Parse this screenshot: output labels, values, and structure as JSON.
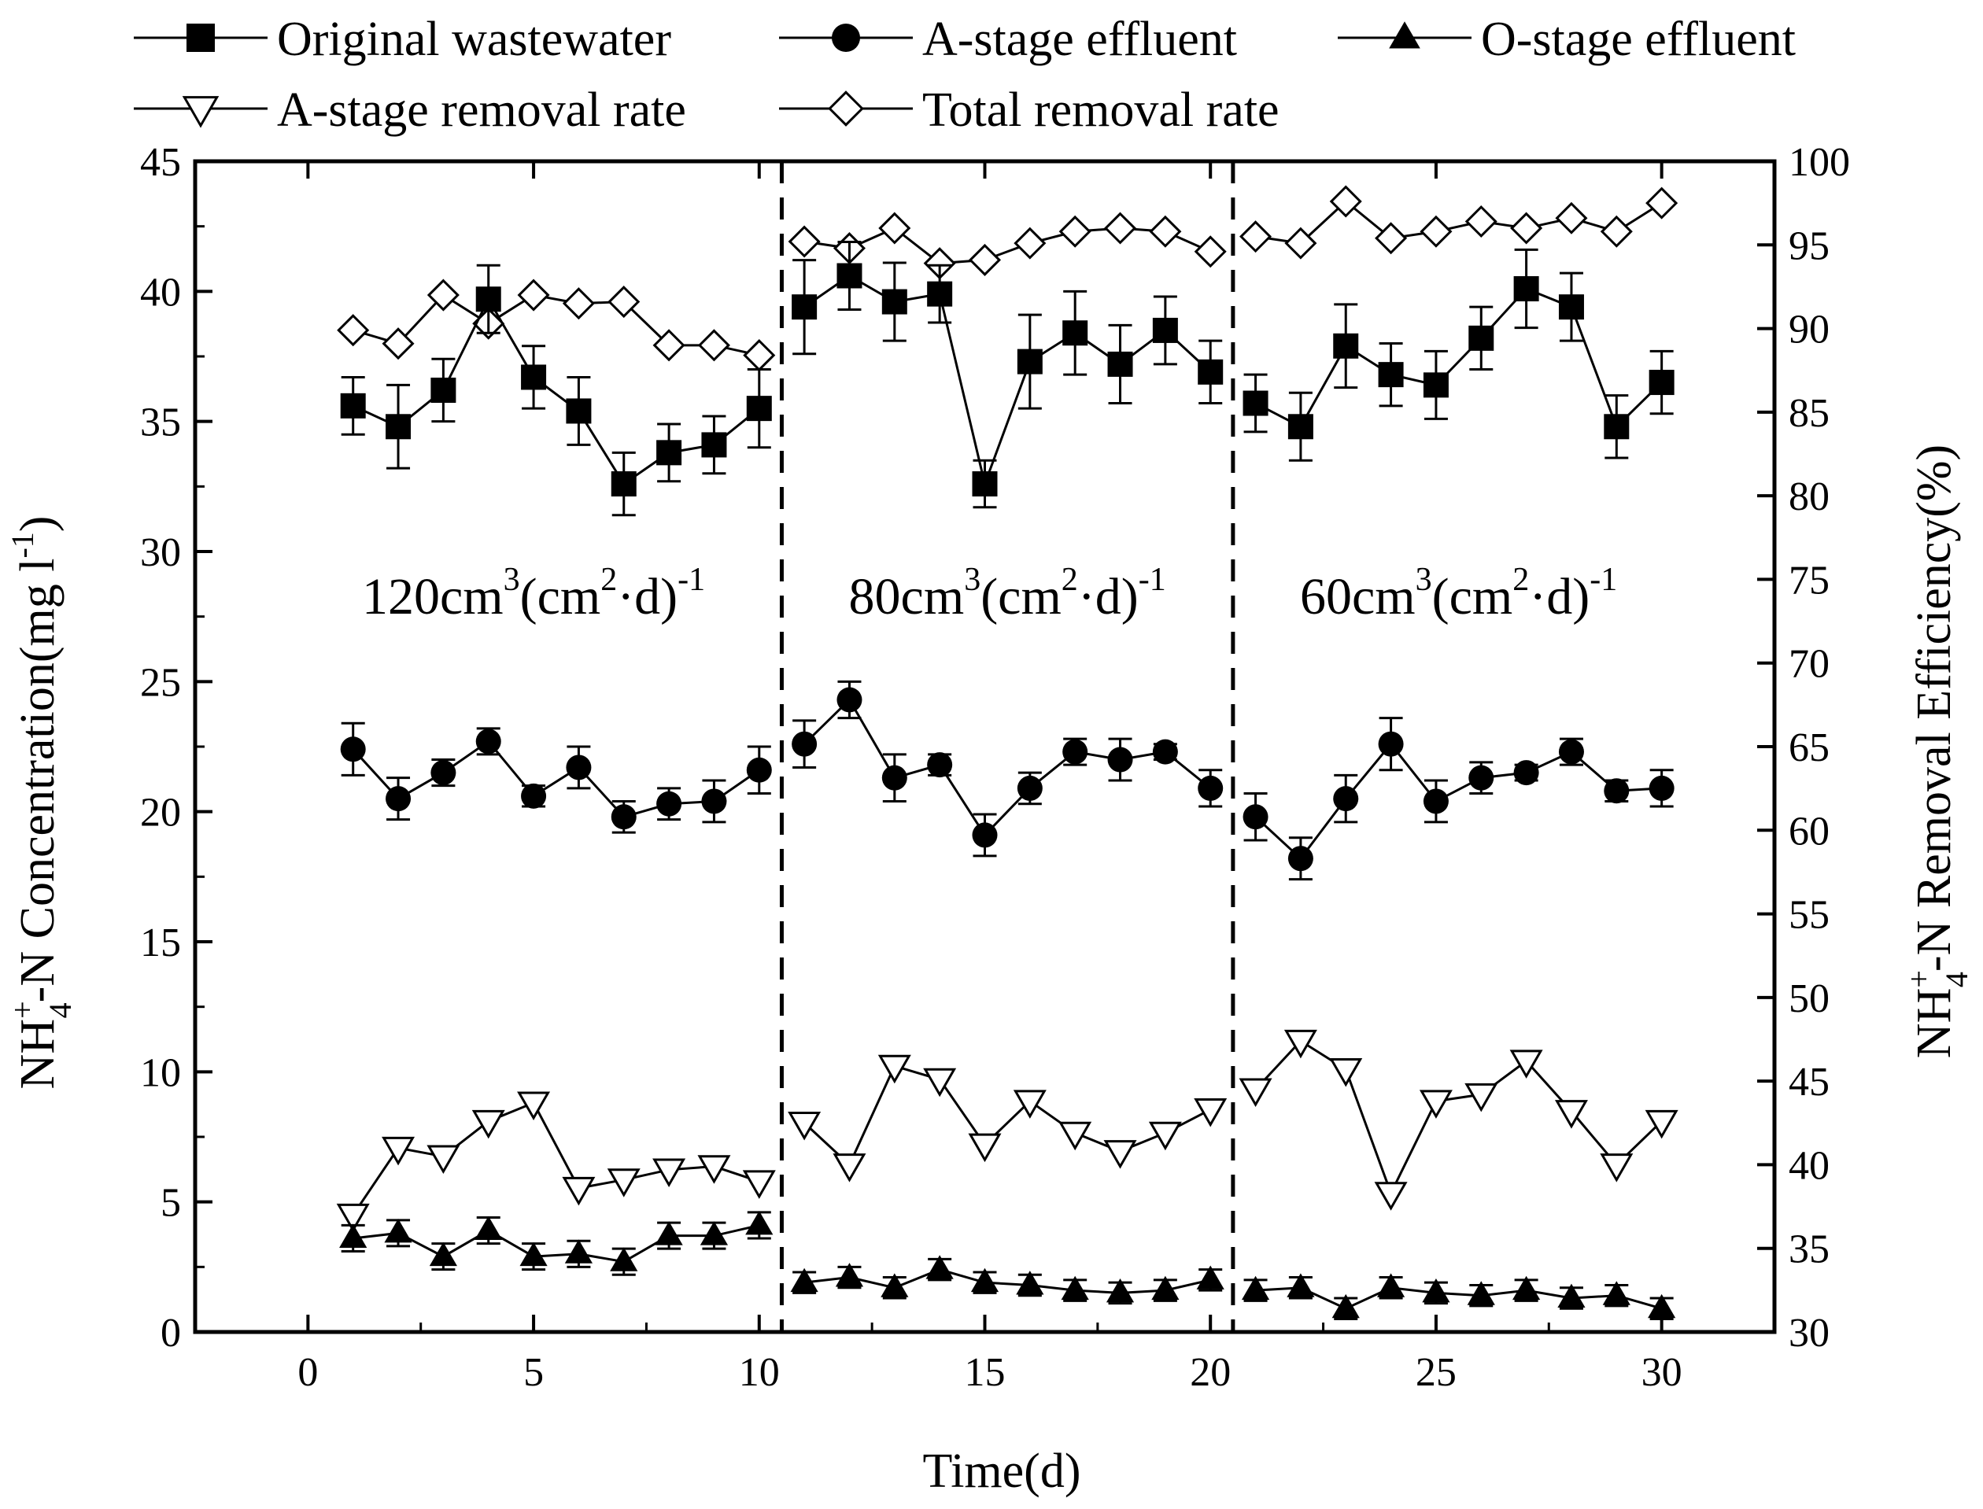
{
  "chart_data": {
    "type": "line",
    "title": "",
    "xlabel": "Time(d)",
    "ylabel": {
      "base": "NH",
      "sup": "+",
      "sub": "4",
      "rest": "-N Concentration(mg l",
      "exp": "-1",
      "close": ")"
    },
    "y2label": {
      "base": "NH",
      "sup": "+",
      "sub": "4",
      "rest": "-N Removal Efficiency(%)"
    },
    "xlim": [
      -2.5,
      32.5
    ],
    "ylim": [
      0,
      45
    ],
    "y2lim": [
      30,
      100
    ],
    "xticks": [
      0,
      5,
      10,
      15,
      20,
      25,
      30
    ],
    "yticks": [
      0,
      5,
      10,
      15,
      20,
      25,
      30,
      35,
      40,
      45
    ],
    "y2ticks": [
      30,
      35,
      40,
      45,
      50,
      55,
      60,
      65,
      70,
      75,
      80,
      85,
      90,
      95,
      100
    ],
    "dividers": [
      10.5,
      20.5
    ],
    "regions": [
      {
        "x": 5.0,
        "value": "120cm",
        "exp1": "3",
        "mid": "(cm",
        "exp2": "2",
        "dot": "·d)",
        "exp3": "-1"
      },
      {
        "x": 15.5,
        "value": "80cm",
        "exp1": "3",
        "mid": "(cm",
        "exp2": "2",
        "dot": "·d)",
        "exp3": "-1"
      },
      {
        "x": 25.5,
        "value": "60cm",
        "exp1": "3",
        "mid": "(cm",
        "exp2": "2",
        "dot": "·d)",
        "exp3": "-1"
      }
    ],
    "series": [
      {
        "name": "Original wastewater",
        "marker": "square",
        "axis": "left",
        "x": [
          1,
          2,
          3,
          4,
          5,
          6,
          7,
          8,
          9,
          10,
          11,
          12,
          13,
          14,
          15,
          16,
          17,
          18,
          19,
          20,
          21,
          22,
          23,
          24,
          25,
          26,
          27,
          28,
          29,
          30
        ],
        "values": [
          35.6,
          34.8,
          36.2,
          39.7,
          36.7,
          35.4,
          32.6,
          33.8,
          34.1,
          35.5,
          39.4,
          40.6,
          39.6,
          39.9,
          32.6,
          37.3,
          38.4,
          37.2,
          38.5,
          36.9,
          35.7,
          34.8,
          37.9,
          36.8,
          36.4,
          38.2,
          40.1,
          39.4,
          34.8,
          36.5
        ],
        "errors": [
          1.1,
          1.6,
          1.2,
          1.3,
          1.2,
          1.3,
          1.2,
          1.1,
          1.1,
          1.5,
          1.8,
          1.3,
          1.5,
          1.1,
          0.9,
          1.8,
          1.6,
          1.5,
          1.3,
          1.2,
          1.1,
          1.3,
          1.6,
          1.2,
          1.3,
          1.2,
          1.5,
          1.3,
          1.2,
          1.2
        ]
      },
      {
        "name": "A-stage effluent",
        "marker": "circle",
        "axis": "left",
        "x": [
          1,
          2,
          3,
          4,
          5,
          6,
          7,
          8,
          9,
          10,
          11,
          12,
          13,
          14,
          15,
          16,
          17,
          18,
          19,
          20,
          21,
          22,
          23,
          24,
          25,
          26,
          27,
          28,
          29,
          30
        ],
        "values": [
          22.4,
          20.5,
          21.5,
          22.7,
          20.6,
          21.7,
          19.8,
          20.3,
          20.4,
          21.6,
          22.6,
          24.3,
          21.3,
          21.8,
          19.1,
          20.9,
          22.3,
          22.0,
          22.3,
          20.9,
          19.8,
          18.2,
          20.5,
          22.6,
          20.4,
          21.3,
          21.5,
          22.3,
          20.8,
          20.9
        ],
        "errors": [
          1.0,
          0.8,
          0.5,
          0.5,
          0.4,
          0.8,
          0.6,
          0.6,
          0.8,
          0.9,
          0.9,
          0.7,
          0.9,
          0.4,
          0.8,
          0.6,
          0.5,
          0.8,
          0.3,
          0.7,
          0.9,
          0.8,
          0.9,
          1.0,
          0.8,
          0.6,
          0.3,
          0.5,
          0.4,
          0.7
        ]
      },
      {
        "name": "O-stage effluent",
        "marker": "triangle",
        "axis": "left",
        "x": [
          1,
          2,
          3,
          4,
          5,
          6,
          7,
          8,
          9,
          10,
          11,
          12,
          13,
          14,
          15,
          16,
          17,
          18,
          19,
          20,
          21,
          22,
          23,
          24,
          25,
          26,
          27,
          28,
          29,
          30
        ],
        "values": [
          3.6,
          3.8,
          2.9,
          3.9,
          2.9,
          3.0,
          2.7,
          3.7,
          3.7,
          4.1,
          1.9,
          2.1,
          1.7,
          2.4,
          1.9,
          1.8,
          1.6,
          1.5,
          1.6,
          2.0,
          1.6,
          1.7,
          0.9,
          1.7,
          1.5,
          1.4,
          1.6,
          1.3,
          1.4,
          0.9
        ],
        "errors": [
          0.5,
          0.5,
          0.5,
          0.5,
          0.5,
          0.5,
          0.5,
          0.5,
          0.5,
          0.5,
          0.4,
          0.4,
          0.4,
          0.4,
          0.4,
          0.4,
          0.4,
          0.4,
          0.4,
          0.4,
          0.4,
          0.4,
          0.4,
          0.4,
          0.4,
          0.4,
          0.4,
          0.4,
          0.4,
          0.4
        ]
      },
      {
        "name": "A-stage removal rate",
        "marker": "triangle-down-open",
        "axis": "right",
        "x": [
          1,
          2,
          3,
          4,
          5,
          6,
          7,
          8,
          9,
          10,
          11,
          12,
          13,
          14,
          15,
          16,
          17,
          18,
          19,
          20,
          21,
          22,
          23,
          24,
          25,
          26,
          27,
          28,
          29,
          30
        ],
        "values": [
          37.0,
          41.0,
          40.5,
          42.6,
          43.7,
          38.6,
          39.1,
          39.7,
          39.9,
          39.0,
          42.5,
          40.0,
          45.9,
          45.1,
          41.2,
          43.8,
          41.9,
          40.8,
          41.9,
          43.3,
          44.5,
          47.4,
          45.7,
          38.3,
          43.8,
          44.2,
          46.2,
          43.2,
          40.0,
          42.6
        ]
      },
      {
        "name": "Total removal rate",
        "marker": "diamond-open",
        "axis": "right",
        "x": [
          1,
          2,
          3,
          4,
          5,
          6,
          7,
          8,
          9,
          10,
          11,
          12,
          13,
          14,
          15,
          16,
          17,
          18,
          19,
          20,
          21,
          22,
          23,
          24,
          25,
          26,
          27,
          28,
          29,
          30
        ],
        "values": [
          89.9,
          89.1,
          92.0,
          90.3,
          92.0,
          91.5,
          91.6,
          89.0,
          89.0,
          88.4,
          95.2,
          94.8,
          96.0,
          93.9,
          94.1,
          95.1,
          95.8,
          96.0,
          95.8,
          94.6,
          95.5,
          95.1,
          97.6,
          95.4,
          95.8,
          96.4,
          96.0,
          96.6,
          95.8,
          97.5
        ]
      }
    ],
    "legend": {
      "position": "top",
      "items": [
        "Original wastewater",
        "A-stage effluent",
        "O-stage effluent",
        "A-stage removal rate",
        "Total removal rate"
      ]
    }
  }
}
